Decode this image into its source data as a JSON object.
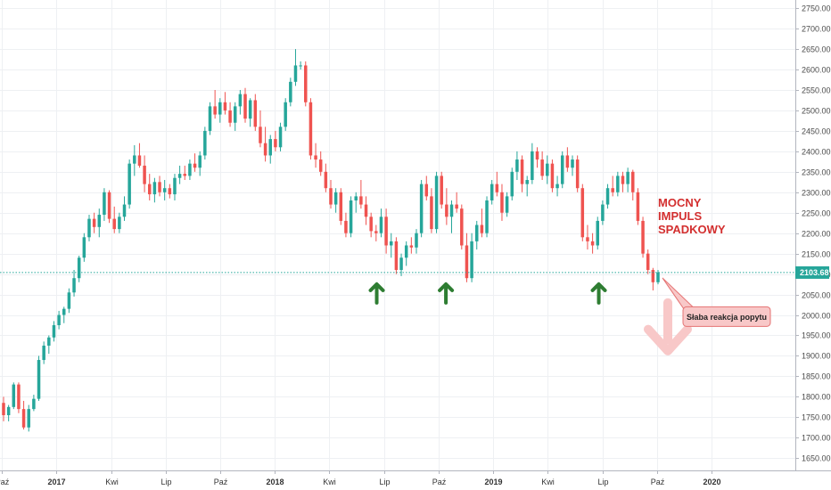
{
  "chart_data": {
    "type": "candlestick",
    "title": "",
    "y_axis_side": "right",
    "ylim": [
      1620,
      2770
    ],
    "yticks": [
      1650,
      1700,
      1750,
      1800,
      1850,
      1900,
      1950,
      2000,
      2050,
      2100,
      2150,
      2200,
      2250,
      2300,
      2350,
      2400,
      2450,
      2500,
      2550,
      2600,
      2650,
      2700,
      2750
    ],
    "ytick_labels": [
      "1650.00",
      "1700.00",
      "1750.00",
      "1800.00",
      "1850.00",
      "1900.00",
      "1950.00",
      "2000.00",
      "2050.00",
      "2100.00",
      "2150.00",
      "2200.00",
      "2250.00",
      "2300.00",
      "2350.00",
      "2400.00",
      "2450.00",
      "2500.00",
      "2550.00",
      "2600.00",
      "2650.00",
      "2700.00",
      "2750.00"
    ],
    "x_range_months": [
      -3.1,
      40.6
    ],
    "xticks": [
      {
        "label": "Paź",
        "month": -3,
        "bold": false
      },
      {
        "label": "2017",
        "month": 0,
        "bold": true
      },
      {
        "label": "Kwi",
        "month": 3,
        "bold": false
      },
      {
        "label": "Lip",
        "month": 6,
        "bold": false
      },
      {
        "label": "Paź",
        "month": 9,
        "bold": false
      },
      {
        "label": "2018",
        "month": 12,
        "bold": true
      },
      {
        "label": "Kwi",
        "month": 15,
        "bold": false
      },
      {
        "label": "Lip",
        "month": 18,
        "bold": false
      },
      {
        "label": "Paź",
        "month": 21,
        "bold": false
      },
      {
        "label": "2019",
        "month": 24,
        "bold": true
      },
      {
        "label": "Kwi",
        "month": 27,
        "bold": false
      },
      {
        "label": "Lip",
        "month": 30,
        "bold": false
      },
      {
        "label": "Paź",
        "month": 33,
        "bold": false
      },
      {
        "label": "2020",
        "month": 36,
        "bold": true
      }
    ],
    "current_price": 2103.68,
    "current_price_label": "2103.68",
    "annotations": {
      "impulse_text": [
        "MOCNY",
        "IMPULS",
        "SPADKOWY"
      ],
      "callout_text": "Słaba reakcja popytu",
      "support_arrows_months": [
        17.6,
        21.4,
        29.8
      ]
    },
    "colors": {
      "up": "#26a69a",
      "down": "#ef5350",
      "price_line": "#26a69a",
      "grid": "#eef0f3",
      "impulse_text": "#d32f2f",
      "support_arrow": "#2e7d32",
      "callout_fill": "#f8c8c8",
      "callout_border": "#e57373",
      "down_arrow": "#f8c8c8"
    },
    "series": [
      {
        "name": "price",
        "points": [
          [
            1785,
            1800,
            1740,
            1755
          ],
          [
            1755,
            1780,
            1740,
            1775
          ],
          [
            1775,
            1835,
            1770,
            1830
          ],
          [
            1830,
            1835,
            1760,
            1770
          ],
          [
            1770,
            1790,
            1720,
            1725
          ],
          [
            1725,
            1780,
            1715,
            1770
          ],
          [
            1770,
            1805,
            1765,
            1795
          ],
          [
            1795,
            1900,
            1790,
            1890
          ],
          [
            1890,
            1935,
            1880,
            1925
          ],
          [
            1925,
            1950,
            1905,
            1945
          ],
          [
            1945,
            1985,
            1935,
            1975
          ],
          [
            1975,
            2010,
            1965,
            2000
          ],
          [
            2000,
            2020,
            1980,
            2015
          ],
          [
            2015,
            2065,
            2005,
            2055
          ],
          [
            2055,
            2110,
            2045,
            2090
          ],
          [
            2090,
            2145,
            2080,
            2140
          ],
          [
            2140,
            2200,
            2130,
            2190
          ],
          [
            2190,
            2245,
            2180,
            2235
          ],
          [
            2235,
            2250,
            2200,
            2215
          ],
          [
            2215,
            2260,
            2190,
            2245
          ],
          [
            2245,
            2310,
            2230,
            2300
          ],
          [
            2300,
            2305,
            2225,
            2235
          ],
          [
            2235,
            2265,
            2200,
            2210
          ],
          [
            2210,
            2250,
            2200,
            2240
          ],
          [
            2240,
            2290,
            2230,
            2270
          ],
          [
            2270,
            2380,
            2260,
            2370
          ],
          [
            2370,
            2415,
            2340,
            2390
          ],
          [
            2390,
            2420,
            2360,
            2365
          ],
          [
            2365,
            2390,
            2300,
            2320
          ],
          [
            2320,
            2345,
            2280,
            2295
          ],
          [
            2295,
            2335,
            2275,
            2325
          ],
          [
            2325,
            2340,
            2290,
            2300
          ],
          [
            2300,
            2330,
            2280,
            2310
          ],
          [
            2310,
            2320,
            2285,
            2295
          ],
          [
            2295,
            2345,
            2280,
            2335
          ],
          [
            2335,
            2365,
            2320,
            2345
          ],
          [
            2345,
            2365,
            2330,
            2340
          ],
          [
            2340,
            2380,
            2330,
            2370
          ],
          [
            2370,
            2395,
            2350,
            2360
          ],
          [
            2360,
            2400,
            2340,
            2390
          ],
          [
            2390,
            2460,
            2380,
            2450
          ],
          [
            2450,
            2520,
            2440,
            2510
          ],
          [
            2510,
            2550,
            2480,
            2490
          ],
          [
            2490,
            2530,
            2470,
            2520
          ],
          [
            2520,
            2545,
            2490,
            2500
          ],
          [
            2500,
            2520,
            2460,
            2470
          ],
          [
            2470,
            2520,
            2450,
            2510
          ],
          [
            2510,
            2550,
            2490,
            2540
          ],
          [
            2540,
            2555,
            2470,
            2480
          ],
          [
            2480,
            2530,
            2460,
            2525
          ],
          [
            2525,
            2540,
            2450,
            2460
          ],
          [
            2460,
            2500,
            2410,
            2420
          ],
          [
            2420,
            2460,
            2375,
            2390
          ],
          [
            2390,
            2440,
            2370,
            2430
          ],
          [
            2430,
            2450,
            2400,
            2410
          ],
          [
            2410,
            2470,
            2400,
            2460
          ],
          [
            2460,
            2530,
            2450,
            2520
          ],
          [
            2520,
            2580,
            2510,
            2570
          ],
          [
            2570,
            2650,
            2560,
            2610
          ],
          [
            2610,
            2620,
            2600,
            2610
          ],
          [
            2610,
            2620,
            2510,
            2520
          ],
          [
            2520,
            2530,
            2380,
            2390
          ],
          [
            2390,
            2420,
            2360,
            2380
          ],
          [
            2380,
            2400,
            2340,
            2350
          ],
          [
            2350,
            2370,
            2300,
            2310
          ],
          [
            2310,
            2330,
            2260,
            2270
          ],
          [
            2270,
            2310,
            2250,
            2300
          ],
          [
            2300,
            2310,
            2220,
            2230
          ],
          [
            2230,
            2250,
            2190,
            2200
          ],
          [
            2200,
            2290,
            2190,
            2280
          ],
          [
            2280,
            2300,
            2250,
            2290
          ],
          [
            2290,
            2330,
            2260,
            2270
          ],
          [
            2270,
            2290,
            2220,
            2240
          ],
          [
            2240,
            2250,
            2190,
            2205
          ],
          [
            2205,
            2220,
            2180,
            2200
          ],
          [
            2200,
            2260,
            2190,
            2240
          ],
          [
            2240,
            2260,
            2150,
            2170
          ],
          [
            2170,
            2200,
            2140,
            2180
          ],
          [
            2180,
            2190,
            2100,
            2110
          ],
          [
            2110,
            2150,
            2095,
            2140
          ],
          [
            2140,
            2180,
            2120,
            2170
          ],
          [
            2170,
            2190,
            2150,
            2165
          ],
          [
            2165,
            2210,
            2150,
            2200
          ],
          [
            2200,
            2330,
            2190,
            2320
          ],
          [
            2320,
            2340,
            2280,
            2290
          ],
          [
            2290,
            2310,
            2200,
            2210
          ],
          [
            2210,
            2350,
            2200,
            2340
          ],
          [
            2340,
            2350,
            2260,
            2270
          ],
          [
            2270,
            2310,
            2220,
            2240
          ],
          [
            2240,
            2280,
            2200,
            2270
          ],
          [
            2270,
            2300,
            2250,
            2260
          ],
          [
            2260,
            2270,
            2160,
            2170
          ],
          [
            2170,
            2200,
            2080,
            2090
          ],
          [
            2090,
            2200,
            2080,
            2180
          ],
          [
            2180,
            2230,
            2160,
            2220
          ],
          [
            2220,
            2260,
            2190,
            2200
          ],
          [
            2200,
            2290,
            2190,
            2280
          ],
          [
            2280,
            2330,
            2270,
            2320
          ],
          [
            2320,
            2350,
            2290,
            2300
          ],
          [
            2300,
            2320,
            2230,
            2250
          ],
          [
            2250,
            2300,
            2240,
            2290
          ],
          [
            2290,
            2360,
            2280,
            2350
          ],
          [
            2350,
            2400,
            2330,
            2380
          ],
          [
            2380,
            2390,
            2300,
            2320
          ],
          [
            2320,
            2340,
            2290,
            2330
          ],
          [
            2330,
            2420,
            2320,
            2400
          ],
          [
            2400,
            2410,
            2360,
            2380
          ],
          [
            2380,
            2400,
            2330,
            2340
          ],
          [
            2340,
            2390,
            2320,
            2370
          ],
          [
            2370,
            2380,
            2300,
            2310
          ],
          [
            2310,
            2340,
            2290,
            2320
          ],
          [
            2320,
            2400,
            2310,
            2390
          ],
          [
            2390,
            2410,
            2350,
            2360
          ],
          [
            2360,
            2390,
            2340,
            2380
          ],
          [
            2380,
            2390,
            2300,
            2310
          ],
          [
            2310,
            2320,
            2180,
            2190
          ],
          [
            2190,
            2220,
            2160,
            2180
          ],
          [
            2180,
            2200,
            2150,
            2170
          ],
          [
            2170,
            2240,
            2160,
            2230
          ],
          [
            2230,
            2280,
            2220,
            2270
          ],
          [
            2270,
            2320,
            2260,
            2310
          ],
          [
            2310,
            2340,
            2290,
            2300
          ],
          [
            2300,
            2350,
            2290,
            2340
          ],
          [
            2340,
            2350,
            2300,
            2320
          ],
          [
            2320,
            2360,
            2300,
            2350
          ],
          [
            2350,
            2355,
            2280,
            2300
          ],
          [
            2300,
            2310,
            2220,
            2230
          ],
          [
            2230,
            2240,
            2140,
            2150
          ],
          [
            2150,
            2160,
            2100,
            2110
          ],
          [
            2110,
            2115,
            2060,
            2080
          ],
          [
            2080,
            2110,
            2075,
            2104
          ]
        ]
      }
    ]
  }
}
